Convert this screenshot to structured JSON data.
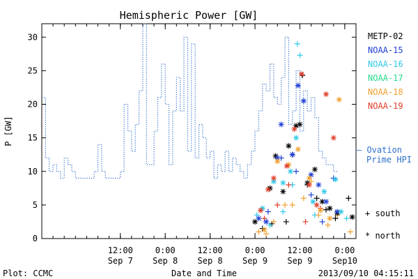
{
  "footer": {
    "plot_credit": "Plot: CCMC",
    "timestamp": "2013/09/10 04:15:11"
  },
  "colors": {
    "METP-02": "#000000",
    "NOAA-15": "#1f3fd6",
    "NOAA-16": "#2ec8e6",
    "NOAA-17": "#22d98a",
    "NOAA-18": "#f0a030",
    "NOAA-19": "#e03c28",
    "ovation": "#3070c8"
  },
  "chart_data": {
    "type": "scatter",
    "title": "Hemispheric Power [GW]",
    "xlabel": "Date and Time",
    "ylabel": "P [GW]",
    "ylim": [
      0,
      32
    ],
    "xlim": [
      "2013-09-06 15:00",
      "2013-09-10 03:00"
    ],
    "yticks": [
      0,
      5,
      10,
      15,
      20,
      25,
      30
    ],
    "xticks": [
      {
        "time": "2013-09-07 12:00",
        "label1": "12:00",
        "label2": "Sep 7"
      },
      {
        "time": "2013-09-08 00:00",
        "label1": "0:00",
        "label2": "Sep 8"
      },
      {
        "time": "2013-09-08 12:00",
        "label1": "12:00",
        "label2": "Sep 8"
      },
      {
        "time": "2013-09-09 00:00",
        "label1": "0:00",
        "label2": "Sep 9"
      },
      {
        "time": "2013-09-09 12:00",
        "label1": "12:00",
        "label2": "Sep 9"
      },
      {
        "time": "2013-09-10 00:00",
        "label1": "0:00",
        "label2": "Sep10"
      }
    ],
    "legend": {
      "position": "right",
      "satellites": [
        "METP-02",
        "NOAA-15",
        "NOAA-16",
        "NOAA-17",
        "NOAA-18",
        "NOAA-19"
      ],
      "ovation_label_1": "— Ovation",
      "ovation_label_2": "Prime HPI",
      "south_label": "+ south",
      "north_label": "* north"
    },
    "ovation_series": {
      "name": "Ovation Prime HPI",
      "style": "dotted-step",
      "start": "2013-09-06 15:00",
      "step_hours": 0.5,
      "values": [
        21,
        21,
        12,
        12,
        10,
        10,
        11,
        11,
        10,
        10,
        9,
        9,
        12,
        12,
        11,
        11,
        10,
        10,
        9,
        9,
        9,
        9,
        9,
        9,
        9,
        9,
        9,
        9,
        10,
        10,
        14,
        14,
        10,
        10,
        9,
        9,
        9,
        9,
        9,
        9,
        9,
        9,
        10,
        10,
        20,
        20,
        16,
        16,
        13,
        13,
        17,
        17,
        22,
        22,
        32,
        32,
        11,
        11,
        11,
        11,
        16,
        16,
        21,
        21,
        26,
        26,
        20,
        20,
        11,
        11,
        19,
        19,
        24,
        24,
        19,
        19,
        30,
        30,
        13,
        13,
        29,
        29,
        12,
        12,
        17,
        17,
        15,
        15,
        12,
        12,
        13,
        13,
        9,
        9,
        11,
        11,
        10,
        10,
        13,
        13,
        10,
        10,
        12,
        12,
        11,
        11,
        10,
        10,
        9,
        9,
        11,
        11,
        13,
        13,
        16,
        16,
        19,
        19,
        23,
        23,
        22,
        22,
        26,
        26,
        21,
        21,
        20,
        20,
        24,
        24,
        30,
        30,
        17,
        17,
        19,
        19,
        25,
        25,
        16,
        16,
        22,
        22,
        19,
        19,
        21,
        21,
        18,
        18,
        13,
        13,
        12,
        12,
        11,
        11,
        11,
        11,
        10,
        10
      ]
    },
    "south_points": [
      {
        "sat": "METP-02",
        "t": "2013-09-09 02:00",
        "y": 1.5
      },
      {
        "sat": "METP-02",
        "t": "2013-09-09 04:30",
        "y": 2.2
      },
      {
        "sat": "METP-02",
        "t": "2013-09-09 08:20",
        "y": 2.5
      },
      {
        "sat": "METP-02",
        "t": "2013-09-09 12:40",
        "y": 24.3
      },
      {
        "sat": "METP-02",
        "t": "2013-09-09 10:00",
        "y": 12.5
      },
      {
        "sat": "METP-02",
        "t": "2013-09-09 14:00",
        "y": 8.0
      },
      {
        "sat": "METP-02",
        "t": "2013-09-09 16:30",
        "y": 6.0
      },
      {
        "sat": "METP-02",
        "t": "2013-09-09 19:00",
        "y": 4.3
      },
      {
        "sat": "METP-02",
        "t": "2013-09-09 21:30",
        "y": 3.0
      },
      {
        "sat": "METP-02",
        "t": "2013-09-10 01:00",
        "y": 6.0
      },
      {
        "sat": "NOAA-15",
        "t": "2013-09-09 03:30",
        "y": 4.0
      },
      {
        "sat": "NOAA-15",
        "t": "2013-09-09 07:00",
        "y": 12.0
      },
      {
        "sat": "NOAA-15",
        "t": "2013-09-09 11:00",
        "y": 10.0
      },
      {
        "sat": "NOAA-15",
        "t": "2013-09-09 15:00",
        "y": 6.5
      },
      {
        "sat": "NOAA-15",
        "t": "2013-09-09 18:00",
        "y": 2.5
      },
      {
        "sat": "NOAA-15",
        "t": "2013-09-09 21:00",
        "y": 9.0
      },
      {
        "sat": "NOAA-16",
        "t": "2013-09-09 00:30",
        "y": 3.5
      },
      {
        "sat": "NOAA-16",
        "t": "2013-09-09 04:00",
        "y": 2.0
      },
      {
        "sat": "NOAA-16",
        "t": "2013-09-09 07:30",
        "y": 4.0
      },
      {
        "sat": "NOAA-16",
        "t": "2013-09-09 10:00",
        "y": 8.0
      },
      {
        "sat": "NOAA-16",
        "t": "2013-09-09 11:20",
        "y": 29.0
      },
      {
        "sat": "NOAA-16",
        "t": "2013-09-09 12:00",
        "y": 27.3
      },
      {
        "sat": "NOAA-16",
        "t": "2013-09-09 16:00",
        "y": 3.5
      },
      {
        "sat": "NOAA-16",
        "t": "2013-09-09 22:00",
        "y": 3.5
      },
      {
        "sat": "NOAA-16",
        "t": "2013-09-10 00:30",
        "y": 3.0
      },
      {
        "sat": "NOAA-18",
        "t": "2013-09-09 01:00",
        "y": 1.0
      },
      {
        "sat": "NOAA-18",
        "t": "2013-09-09 03:00",
        "y": 0.7
      },
      {
        "sat": "NOAA-18",
        "t": "2013-09-09 05:00",
        "y": 2.5
      },
      {
        "sat": "NOAA-18",
        "t": "2013-09-09 08:00",
        "y": 5.0
      },
      {
        "sat": "NOAA-18",
        "t": "2013-09-09 10:00",
        "y": 5.0
      },
      {
        "sat": "NOAA-18",
        "t": "2013-09-09 13:00",
        "y": 6.0
      },
      {
        "sat": "NOAA-18",
        "t": "2013-09-09 15:00",
        "y": 8.5
      },
      {
        "sat": "NOAA-18",
        "t": "2013-09-09 17:00",
        "y": 3.5
      },
      {
        "sat": "NOAA-18",
        "t": "2013-09-09 19:30",
        "y": 2.0
      },
      {
        "sat": "NOAA-18",
        "t": "2013-09-09 22:00",
        "y": 3.5
      },
      {
        "sat": "NOAA-18",
        "t": "2013-09-10 01:30",
        "y": 1.0
      },
      {
        "sat": "NOAA-19",
        "t": "2013-09-09 02:30",
        "y": 3.0
      },
      {
        "sat": "NOAA-19",
        "t": "2013-09-09 06:00",
        "y": 5.0
      },
      {
        "sat": "NOAA-19",
        "t": "2013-09-09 09:00",
        "y": 8.0
      },
      {
        "sat": "NOAA-19",
        "t": "2013-09-09 13:30",
        "y": 2.5
      },
      {
        "sat": "NOAA-19",
        "t": "2013-09-09 17:30",
        "y": 4.5
      }
    ],
    "north_points": [
      {
        "sat": "METP-02",
        "t": "2013-09-09 00:00",
        "y": 2.5
      },
      {
        "sat": "METP-02",
        "t": "2013-09-09 04:00",
        "y": 7.5
      },
      {
        "sat": "METP-02",
        "t": "2013-09-09 05:30",
        "y": 12.3
      },
      {
        "sat": "METP-02",
        "t": "2013-09-09 07:30",
        "y": 7.0
      },
      {
        "sat": "METP-02",
        "t": "2013-09-09 09:00",
        "y": 13.8
      },
      {
        "sat": "METP-02",
        "t": "2013-09-09 11:00",
        "y": 16.8
      },
      {
        "sat": "METP-02",
        "t": "2013-09-09 12:00",
        "y": 17.0
      },
      {
        "sat": "METP-02",
        "t": "2013-09-09 14:00",
        "y": 8.3
      },
      {
        "sat": "METP-02",
        "t": "2013-09-09 16:00",
        "y": 10.3
      },
      {
        "sat": "METP-02",
        "t": "2013-09-09 18:00",
        "y": 5.5
      },
      {
        "sat": "METP-02",
        "t": "2013-09-09 20:00",
        "y": 4.5
      },
      {
        "sat": "METP-02",
        "t": "2013-09-09 22:00",
        "y": 3.8
      },
      {
        "sat": "METP-02",
        "t": "2013-09-10 02:00",
        "y": 3.2
      },
      {
        "sat": "NOAA-15",
        "t": "2013-09-09 01:00",
        "y": 3.0
      },
      {
        "sat": "NOAA-15",
        "t": "2013-09-09 03:00",
        "y": 2.5
      },
      {
        "sat": "NOAA-15",
        "t": "2013-09-09 06:00",
        "y": 12.0
      },
      {
        "sat": "NOAA-15",
        "t": "2013-09-09 07:00",
        "y": 17.0
      },
      {
        "sat": "NOAA-15",
        "t": "2013-09-09 10:00",
        "y": 12.5
      },
      {
        "sat": "NOAA-15",
        "t": "2013-09-09 11:30",
        "y": 22.8
      },
      {
        "sat": "NOAA-15",
        "t": "2013-09-09 13:00",
        "y": 20.5
      },
      {
        "sat": "NOAA-15",
        "t": "2013-09-09 15:00",
        "y": 9.5
      },
      {
        "sat": "NOAA-15",
        "t": "2013-09-09 17:00",
        "y": 8.0
      },
      {
        "sat": "NOAA-15",
        "t": "2013-09-09 19:00",
        "y": 5.5
      },
      {
        "sat": "NOAA-15",
        "t": "2013-09-09 22:00",
        "y": 4.0
      },
      {
        "sat": "NOAA-16",
        "t": "2013-09-09 02:00",
        "y": 4.5
      },
      {
        "sat": "NOAA-16",
        "t": "2013-09-09 05:00",
        "y": 8.5
      },
      {
        "sat": "NOAA-16",
        "t": "2013-09-09 07:30",
        "y": 8.3
      },
      {
        "sat": "NOAA-16",
        "t": "2013-09-09 09:30",
        "y": 10.0
      },
      {
        "sat": "NOAA-16",
        "t": "2013-09-09 11:00",
        "y": 15.0
      },
      {
        "sat": "NOAA-16",
        "t": "2013-09-09 15:30",
        "y": 5.5
      },
      {
        "sat": "NOAA-16",
        "t": "2013-09-09 18:30",
        "y": 7.0
      },
      {
        "sat": "NOAA-16",
        "t": "2013-09-09 21:30",
        "y": 8.8
      },
      {
        "sat": "NOAA-16",
        "t": "2013-09-09 23:00",
        "y": 4.0
      },
      {
        "sat": "NOAA-18",
        "t": "2013-09-09 02:30",
        "y": 1.3
      },
      {
        "sat": "NOAA-18",
        "t": "2013-09-09 06:00",
        "y": 11.5
      },
      {
        "sat": "NOAA-18",
        "t": "2013-09-09 09:00",
        "y": 11.0
      },
      {
        "sat": "NOAA-18",
        "t": "2013-09-09 11:30",
        "y": 13.3
      },
      {
        "sat": "NOAA-18",
        "t": "2013-09-09 14:30",
        "y": 9.0
      },
      {
        "sat": "NOAA-18",
        "t": "2013-09-09 17:30",
        "y": 4.2
      },
      {
        "sat": "NOAA-18",
        "t": "2013-09-09 20:00",
        "y": 3.0
      },
      {
        "sat": "NOAA-18",
        "t": "2013-09-09 22:30",
        "y": 20.7
      },
      {
        "sat": "NOAA-19",
        "t": "2013-09-09 01:30",
        "y": 4.2
      },
      {
        "sat": "NOAA-19",
        "t": "2013-09-09 03:30",
        "y": 7.3
      },
      {
        "sat": "NOAA-19",
        "t": "2013-09-09 05:00",
        "y": 9.0
      },
      {
        "sat": "NOAA-19",
        "t": "2013-09-09 08:30",
        "y": 10.8
      },
      {
        "sat": "NOAA-19",
        "t": "2013-09-09 10:30",
        "y": 16.3
      },
      {
        "sat": "NOAA-19",
        "t": "2013-09-09 12:30",
        "y": 24.5
      },
      {
        "sat": "NOAA-19",
        "t": "2013-09-09 14:30",
        "y": 8.0
      },
      {
        "sat": "NOAA-19",
        "t": "2013-09-09 16:30",
        "y": 5.0
      },
      {
        "sat": "NOAA-19",
        "t": "2013-09-09 19:00",
        "y": 21.5
      },
      {
        "sat": "NOAA-19",
        "t": "2013-09-09 21:00",
        "y": 15.0
      }
    ]
  }
}
